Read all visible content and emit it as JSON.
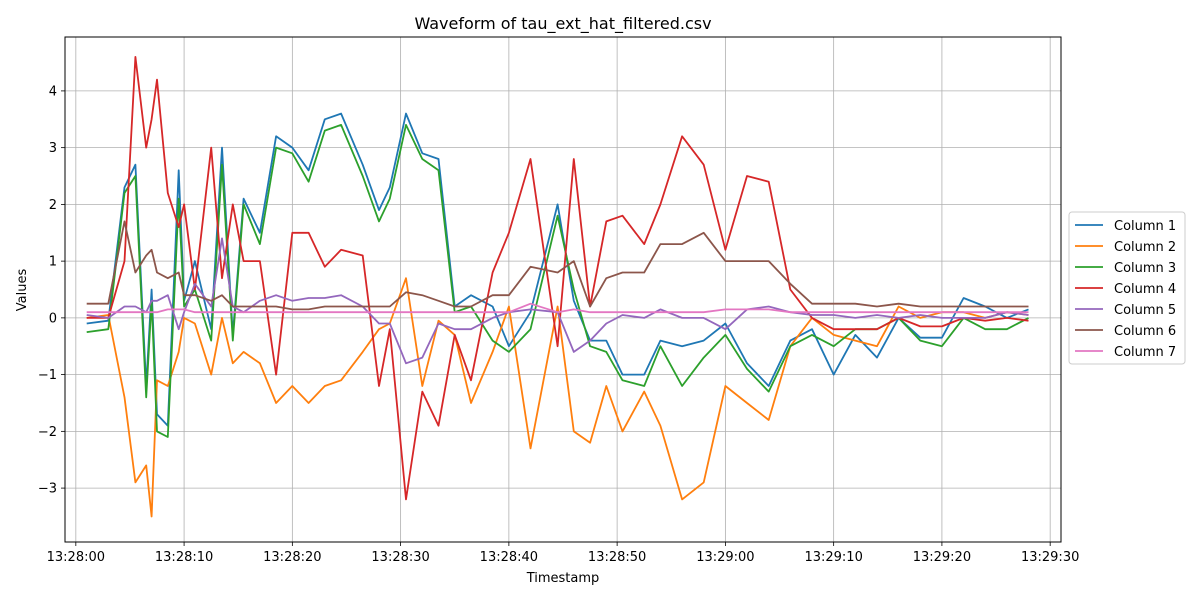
{
  "chart_data": {
    "type": "line",
    "title": "Waveform of tau_ext_hat_filtered.csv",
    "xlabel": "Timestamp",
    "ylabel": "Values",
    "xlim": [
      "13:27:59",
      "13:29:31"
    ],
    "ylim": [
      -3.95,
      4.95
    ],
    "x_ticks": [
      "13:28:00",
      "13:28:10",
      "13:28:20",
      "13:28:30",
      "13:28:40",
      "13:28:50",
      "13:29:00",
      "13:29:10",
      "13:29:20",
      "13:29:30"
    ],
    "y_ticks": [
      -3,
      -2,
      -1,
      0,
      1,
      2,
      3,
      4
    ],
    "grid": true,
    "legend_position": "center-right-outside",
    "x": [
      "13:28:01.0",
      "13:28:03.0",
      "13:28:04.5",
      "13:28:05.5",
      "13:28:06.5",
      "13:28:07.0",
      "13:28:07.5",
      "13:28:08.5",
      "13:28:09.5",
      "13:28:10.0",
      "13:28:11.0",
      "13:28:12.5",
      "13:28:13.5",
      "13:28:14.5",
      "13:28:15.5",
      "13:28:17.0",
      "13:28:18.5",
      "13:28:20.0",
      "13:28:21.5",
      "13:28:23.0",
      "13:28:24.5",
      "13:28:26.5",
      "13:28:28.0",
      "13:28:29.0",
      "13:28:30.5",
      "13:28:32.0",
      "13:28:33.5",
      "13:28:35.0",
      "13:28:36.5",
      "13:28:38.5",
      "13:28:40.0",
      "13:28:42.0",
      "13:28:44.5",
      "13:28:46.0",
      "13:28:47.5",
      "13:28:49.0",
      "13:28:50.5",
      "13:28:52.5",
      "13:28:54.0",
      "13:28:56.0",
      "13:28:58.0",
      "13:29:00.0",
      "13:29:02.0",
      "13:29:04.0",
      "13:29:06.0",
      "13:29:08.0",
      "13:29:10.0",
      "13:29:12.0",
      "13:29:14.0",
      "13:29:16.0",
      "13:29:18.0",
      "13:29:20.0",
      "13:29:22.0",
      "13:29:24.0",
      "13:29:26.0",
      "13:29:28.0"
    ],
    "series": [
      {
        "name": "Column 1",
        "color": "#1f77b4",
        "values": [
          -0.1,
          -0.05,
          2.3,
          2.7,
          -1.2,
          0.5,
          -1.7,
          -1.9,
          2.6,
          0.3,
          1.0,
          -0.2,
          3.0,
          -0.3,
          2.1,
          1.5,
          3.2,
          3.0,
          2.6,
          3.5,
          3.6,
          2.7,
          1.9,
          2.3,
          3.6,
          2.9,
          2.8,
          0.2,
          0.4,
          0.2,
          -0.5,
          0.1,
          2.0,
          0.3,
          -0.4,
          -0.4,
          -1.0,
          -1.0,
          -0.4,
          -0.5,
          -0.4,
          -0.1,
          -0.8,
          -1.2,
          -0.4,
          -0.2,
          -1.0,
          -0.3,
          -0.7,
          0.0,
          -0.35,
          -0.35,
          0.35,
          0.2,
          0.0,
          0.15
        ]
      },
      {
        "name": "Column 2",
        "color": "#ff7f0e",
        "values": [
          0.0,
          0.05,
          -1.4,
          -2.9,
          -2.6,
          -3.5,
          -1.1,
          -1.2,
          -0.6,
          0.0,
          -0.1,
          -1.0,
          0.0,
          -0.8,
          -0.6,
          -0.8,
          -1.5,
          -1.2,
          -1.5,
          -1.2,
          -1.1,
          -0.6,
          -0.2,
          -0.1,
          0.7,
          -1.2,
          -0.05,
          -0.3,
          -1.5,
          -0.6,
          0.2,
          -2.3,
          0.2,
          -2.0,
          -2.2,
          -1.2,
          -2.0,
          -1.3,
          -1.9,
          -3.2,
          -2.9,
          -1.2,
          -1.5,
          -1.8,
          -0.5,
          0.0,
          -0.3,
          -0.4,
          -0.5,
          0.2,
          0.0,
          0.1,
          0.1,
          0.0,
          0.1,
          0.05
        ]
      },
      {
        "name": "Column 3",
        "color": "#2ca02c",
        "values": [
          -0.25,
          -0.2,
          2.2,
          2.5,
          -1.4,
          0.3,
          -2.0,
          -2.1,
          2.1,
          0.2,
          0.5,
          -0.4,
          2.7,
          -0.4,
          2.0,
          1.3,
          3.0,
          2.9,
          2.4,
          3.3,
          3.4,
          2.5,
          1.7,
          2.1,
          3.4,
          2.8,
          2.6,
          0.1,
          0.2,
          -0.4,
          -0.6,
          -0.2,
          1.8,
          0.5,
          -0.5,
          -0.6,
          -1.1,
          -1.2,
          -0.5,
          -1.2,
          -0.7,
          -0.3,
          -0.9,
          -1.3,
          -0.5,
          -0.3,
          -0.5,
          -0.2,
          -0.2,
          0.0,
          -0.4,
          -0.5,
          0.0,
          -0.2,
          -0.2,
          0.0
        ]
      },
      {
        "name": "Column 4",
        "color": "#d62728",
        "values": [
          0.0,
          0.0,
          1.0,
          4.6,
          3.0,
          3.5,
          4.2,
          2.2,
          1.6,
          2.0,
          0.5,
          3.0,
          0.7,
          2.0,
          1.0,
          1.0,
          -1.0,
          1.5,
          1.5,
          0.9,
          1.2,
          1.1,
          -1.2,
          -0.2,
          -3.2,
          -1.3,
          -1.9,
          -0.3,
          -1.1,
          0.8,
          1.5,
          2.8,
          -0.5,
          2.8,
          0.2,
          1.7,
          1.8,
          1.3,
          2.0,
          3.2,
          2.7,
          1.2,
          2.5,
          2.4,
          0.5,
          0.0,
          -0.2,
          -0.2,
          -0.2,
          0.0,
          -0.15,
          -0.15,
          0.0,
          -0.05,
          0.0,
          -0.05
        ]
      },
      {
        "name": "Column 5",
        "color": "#9467bd",
        "values": [
          0.05,
          0.0,
          0.2,
          0.2,
          0.1,
          0.3,
          0.3,
          0.4,
          -0.2,
          0.1,
          0.6,
          0.2,
          1.4,
          0.2,
          0.1,
          0.3,
          0.4,
          0.3,
          0.35,
          0.35,
          0.4,
          0.2,
          -0.1,
          -0.1,
          -0.8,
          -0.7,
          -0.1,
          -0.2,
          -0.2,
          0.0,
          0.1,
          0.15,
          0.1,
          -0.6,
          -0.4,
          -0.1,
          0.05,
          0.0,
          0.15,
          0.0,
          0.0,
          -0.2,
          0.15,
          0.2,
          0.1,
          0.05,
          0.05,
          0.0,
          0.05,
          0.0,
          0.05,
          0.0,
          0.0,
          0.0,
          0.1,
          0.05
        ]
      },
      {
        "name": "Column 6",
        "color": "#8c564b",
        "values": [
          0.25,
          0.25,
          1.7,
          0.8,
          1.1,
          1.2,
          0.8,
          0.7,
          0.8,
          0.4,
          0.4,
          0.3,
          0.4,
          0.2,
          0.2,
          0.2,
          0.2,
          0.15,
          0.15,
          0.2,
          0.2,
          0.2,
          0.2,
          0.2,
          0.45,
          0.4,
          0.3,
          0.2,
          0.2,
          0.4,
          0.4,
          0.9,
          0.8,
          1.0,
          0.2,
          0.7,
          0.8,
          0.8,
          1.3,
          1.3,
          1.5,
          1.0,
          1.0,
          1.0,
          0.6,
          0.25,
          0.25,
          0.25,
          0.2,
          0.25,
          0.2,
          0.2,
          0.2,
          0.2,
          0.2,
          0.2
        ]
      },
      {
        "name": "Column 7",
        "color": "#e377c2",
        "values": [
          0.1,
          0.1,
          0.1,
          0.1,
          0.1,
          0.1,
          0.1,
          0.15,
          0.15,
          0.15,
          0.1,
          0.1,
          0.1,
          0.1,
          0.1,
          0.1,
          0.1,
          0.1,
          0.1,
          0.1,
          0.1,
          0.1,
          0.1,
          0.1,
          0.1,
          0.1,
          0.1,
          0.1,
          0.1,
          0.1,
          0.1,
          0.25,
          0.1,
          0.15,
          0.1,
          0.1,
          0.1,
          0.1,
          0.1,
          0.1,
          0.1,
          0.15,
          0.15,
          0.15,
          0.1,
          0.1,
          0.1,
          0.1,
          0.1,
          0.1,
          0.1,
          0.1,
          0.1,
          0.1,
          0.1,
          0.1
        ]
      }
    ]
  }
}
